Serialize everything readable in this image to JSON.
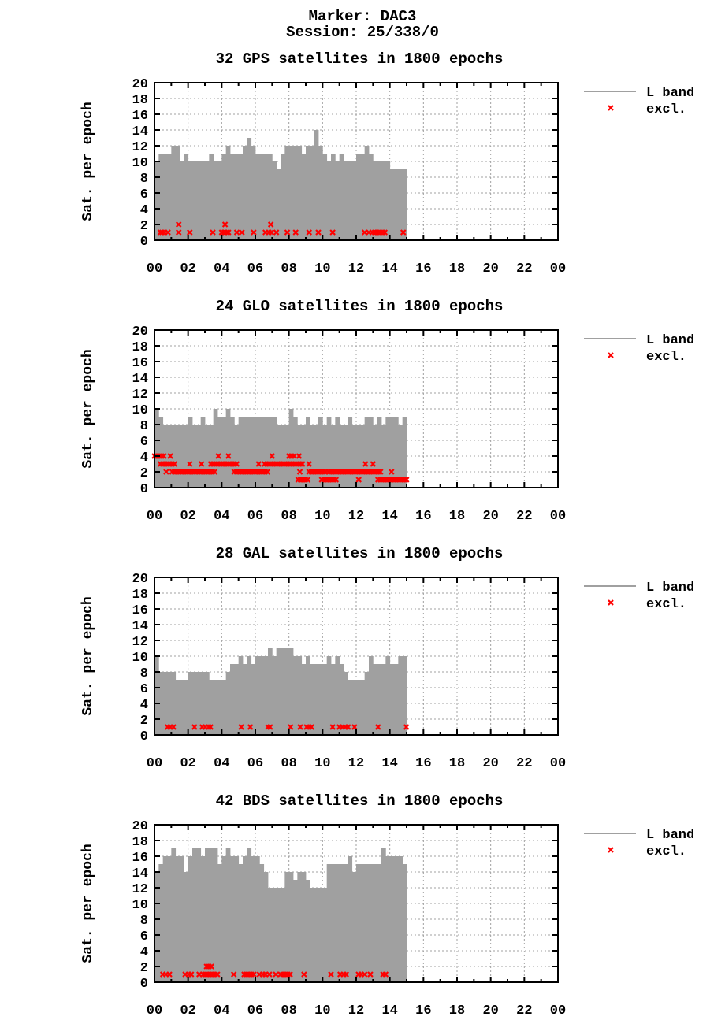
{
  "header": {
    "marker": "Marker: DAC3",
    "session": "Session: 25/338/0"
  },
  "colors": {
    "l_band": "#a0a0a0",
    "excluded": "#ff0000",
    "grid": "#a0a0a0"
  },
  "chart_data": [
    {
      "type": "area",
      "title": "32 GPS satellites in 1800 epochs",
      "ylabel": "Sat. per epoch",
      "xlim": [
        0,
        24
      ],
      "ylim": [
        0,
        20
      ],
      "xticks": [
        "00",
        "02",
        "04",
        "06",
        "08",
        "10",
        "12",
        "14",
        "16",
        "18",
        "20",
        "22",
        "00"
      ],
      "yticks": [
        "0",
        "2",
        "4",
        "6",
        "8",
        "10",
        "12",
        "14",
        "16",
        "18",
        "20"
      ],
      "grid": true,
      "legend": "right",
      "legend_entries": [
        "L band",
        "excl."
      ],
      "x": [
        0,
        0.25,
        0.5,
        0.75,
        1,
        1.25,
        1.5,
        1.75,
        2,
        2.25,
        2.5,
        2.75,
        3,
        3.25,
        3.5,
        3.75,
        4,
        4.25,
        4.5,
        4.75,
        5,
        5.25,
        5.5,
        5.75,
        6,
        6.25,
        6.5,
        6.75,
        7,
        7.25,
        7.5,
        7.75,
        8,
        8.25,
        8.5,
        8.75,
        9,
        9.25,
        9.5,
        9.75,
        10,
        10.25,
        10.5,
        10.75,
        11,
        11.25,
        11.5,
        11.75,
        12,
        12.25,
        12.5,
        12.75,
        13,
        13.25,
        13.5,
        13.75,
        14,
        14.25,
        14.5,
        14.75
      ],
      "values": [
        10,
        11,
        11,
        11,
        12,
        12,
        10,
        11,
        10,
        10,
        10,
        10,
        10,
        11,
        10,
        10,
        11,
        12,
        11,
        11,
        11,
        12,
        13,
        12,
        11,
        11,
        11,
        11,
        10,
        9,
        11,
        12,
        12,
        12,
        12,
        11,
        12,
        12,
        14,
        12,
        11,
        10,
        11,
        10,
        11,
        10,
        10,
        10,
        11,
        11,
        12,
        11,
        10,
        10,
        10,
        10,
        9,
        9,
        9,
        9
      ],
      "excluded_points": [
        [
          0.35,
          1
        ],
        [
          0.45,
          1
        ],
        [
          0.6,
          1
        ],
        [
          0.8,
          1
        ],
        [
          1.44,
          1
        ],
        [
          1.44,
          2
        ],
        [
          2.1,
          1
        ],
        [
          3.47,
          1
        ],
        [
          4.0,
          1
        ],
        [
          4.15,
          1
        ],
        [
          4.2,
          2
        ],
        [
          4.3,
          1
        ],
        [
          4.4,
          1
        ],
        [
          4.9,
          1
        ],
        [
          5.2,
          1
        ],
        [
          5.9,
          1
        ],
        [
          6.6,
          1
        ],
        [
          6.8,
          1
        ],
        [
          6.92,
          2
        ],
        [
          6.95,
          1
        ],
        [
          7.25,
          1
        ],
        [
          7.9,
          1
        ],
        [
          8.4,
          1
        ],
        [
          9.2,
          1
        ],
        [
          9.75,
          1
        ],
        [
          10.6,
          1
        ],
        [
          12.5,
          1
        ],
        [
          12.75,
          1
        ],
        [
          12.95,
          1
        ],
        [
          13.1,
          1
        ],
        [
          13.25,
          1
        ],
        [
          13.4,
          1
        ],
        [
          13.55,
          1
        ],
        [
          13.7,
          1
        ],
        [
          14.8,
          1
        ]
      ],
      "excluded_runs": []
    },
    {
      "type": "area",
      "title": "24 GLO satellites in 1800 epochs",
      "ylabel": "Sat. per epoch",
      "xlim": [
        0,
        24
      ],
      "ylim": [
        0,
        20
      ],
      "xticks": [
        "00",
        "02",
        "04",
        "06",
        "08",
        "10",
        "12",
        "14",
        "16",
        "18",
        "20",
        "22",
        "00"
      ],
      "yticks": [
        "0",
        "2",
        "4",
        "6",
        "8",
        "10",
        "12",
        "14",
        "16",
        "18",
        "20"
      ],
      "grid": true,
      "legend": "right",
      "legend_entries": [
        "L band",
        "excl."
      ],
      "x": [
        0,
        0.25,
        0.5,
        0.75,
        1,
        1.25,
        1.5,
        1.75,
        2,
        2.25,
        2.5,
        2.75,
        3,
        3.25,
        3.5,
        3.75,
        4,
        4.25,
        4.5,
        4.75,
        5,
        5.25,
        5.5,
        5.75,
        6,
        6.25,
        6.5,
        6.75,
        7,
        7.25,
        7.5,
        7.75,
        8,
        8.25,
        8.5,
        8.75,
        9,
        9.25,
        9.5,
        9.75,
        10,
        10.25,
        10.5,
        10.75,
        11,
        11.25,
        11.5,
        11.75,
        12,
        12.25,
        12.5,
        12.75,
        13,
        13.25,
        13.5,
        13.75,
        14,
        14.25,
        14.5,
        14.75
      ],
      "values": [
        10,
        9,
        8,
        8,
        8,
        8,
        8,
        8,
        9,
        8,
        8,
        9,
        8,
        8,
        10,
        9,
        9,
        10,
        9,
        8,
        9,
        9,
        9,
        9,
        9,
        9,
        9,
        9,
        9,
        8,
        8,
        8,
        10,
        9,
        8,
        8,
        9,
        8,
        8,
        9,
        8,
        9,
        8,
        9,
        8,
        8,
        9,
        8,
        8,
        8,
        9,
        9,
        8,
        9,
        8,
        9,
        9,
        9,
        8,
        9
      ],
      "excluded_points": [
        [
          0.94,
          4
        ],
        [
          3.8,
          4
        ],
        [
          4.4,
          4
        ],
        [
          7.0,
          4
        ],
        [
          8.0,
          4
        ],
        [
          8.15,
          4
        ],
        [
          8.3,
          4
        ],
        [
          8.6,
          4
        ],
        [
          2.1,
          3
        ],
        [
          2.8,
          3
        ],
        [
          6.2,
          3
        ],
        [
          9.2,
          3
        ],
        [
          12.55,
          3
        ],
        [
          13.0,
          3
        ],
        [
          0.7,
          2
        ],
        [
          8.65,
          2
        ],
        [
          14.1,
          2
        ],
        [
          12.15,
          1
        ]
      ],
      "excluded_runs": [
        [
          0,
          0.6,
          4
        ],
        [
          0.35,
          1.3,
          3
        ],
        [
          3.35,
          5.0,
          3
        ],
        [
          6.55,
          8.8,
          3
        ],
        [
          1.05,
          3.6,
          2
        ],
        [
          4.75,
          6.75,
          2
        ],
        [
          9.2,
          10.2,
          2
        ],
        [
          10.35,
          13.55,
          2
        ],
        [
          8.55,
          9.25,
          1
        ],
        [
          9.95,
          10.85,
          1
        ],
        [
          13.3,
          15.05,
          1
        ]
      ]
    },
    {
      "type": "area",
      "title": "28 GAL satellites in 1800 epochs",
      "ylabel": "Sat. per epoch",
      "xlim": [
        0,
        24
      ],
      "ylim": [
        0,
        20
      ],
      "xticks": [
        "00",
        "02",
        "04",
        "06",
        "08",
        "10",
        "12",
        "14",
        "16",
        "18",
        "20",
        "22",
        "00"
      ],
      "yticks": [
        "0",
        "2",
        "4",
        "6",
        "8",
        "10",
        "12",
        "14",
        "16",
        "18",
        "20"
      ],
      "grid": true,
      "legend": "right",
      "legend_entries": [
        "L band",
        "excl."
      ],
      "x": [
        0,
        0.25,
        0.5,
        0.75,
        1,
        1.25,
        1.5,
        1.75,
        2,
        2.25,
        2.5,
        2.75,
        3,
        3.25,
        3.5,
        3.75,
        4,
        4.25,
        4.5,
        4.75,
        5,
        5.25,
        5.5,
        5.75,
        6,
        6.25,
        6.5,
        6.75,
        7,
        7.25,
        7.5,
        7.75,
        8,
        8.25,
        8.5,
        8.75,
        9,
        9.25,
        9.5,
        9.75,
        10,
        10.25,
        10.5,
        10.75,
        11,
        11.25,
        11.5,
        11.75,
        12,
        12.25,
        12.5,
        12.75,
        13,
        13.25,
        13.5,
        13.75,
        14,
        14.25,
        14.5,
        14.75
      ],
      "values": [
        10,
        8,
        8,
        8,
        8,
        7,
        7,
        7,
        8,
        8,
        8,
        8,
        8,
        7,
        7,
        7,
        7,
        8,
        9,
        9,
        10,
        9,
        10,
        9,
        10,
        10,
        10,
        11,
        10,
        11,
        11,
        11,
        11,
        10,
        10,
        9,
        10,
        9,
        9,
        9,
        9,
        10,
        9,
        10,
        9,
        8,
        7,
        7,
        7,
        7,
        8,
        10,
        9,
        9,
        9,
        10,
        9,
        9,
        10,
        10
      ],
      "excluded_points": [
        [
          0.78,
          1
        ],
        [
          0.94,
          1
        ],
        [
          1.13,
          1
        ],
        [
          2.38,
          1
        ],
        [
          2.84,
          1
        ],
        [
          3.03,
          1
        ],
        [
          3.23,
          1
        ],
        [
          3.34,
          1
        ],
        [
          5.16,
          1
        ],
        [
          5.7,
          1
        ],
        [
          6.75,
          1
        ],
        [
          6.88,
          1
        ],
        [
          8.1,
          1
        ],
        [
          8.67,
          1
        ],
        [
          9.05,
          1
        ],
        [
          9.19,
          1
        ],
        [
          9.34,
          1
        ],
        [
          10.6,
          1
        ],
        [
          11.0,
          1
        ],
        [
          11.17,
          1
        ],
        [
          11.36,
          1
        ],
        [
          11.52,
          1
        ],
        [
          11.9,
          1
        ],
        [
          13.3,
          1
        ],
        [
          14.98,
          1
        ]
      ],
      "excluded_runs": []
    },
    {
      "type": "area",
      "title": "42 BDS satellites in 1800 epochs",
      "ylabel": "Sat. per epoch",
      "xlim": [
        0,
        24
      ],
      "ylim": [
        0,
        20
      ],
      "xticks": [
        "00",
        "02",
        "04",
        "06",
        "08",
        "10",
        "12",
        "14",
        "16",
        "18",
        "20",
        "22",
        "00"
      ],
      "yticks": [
        "0",
        "2",
        "4",
        "6",
        "8",
        "10",
        "12",
        "14",
        "16",
        "18",
        "20"
      ],
      "grid": true,
      "legend": "right",
      "legend_entries": [
        "L band",
        "excl."
      ],
      "x": [
        0,
        0.25,
        0.5,
        0.75,
        1,
        1.25,
        1.5,
        1.75,
        2,
        2.25,
        2.5,
        2.75,
        3,
        3.25,
        3.5,
        3.75,
        4,
        4.25,
        4.5,
        4.75,
        5,
        5.25,
        5.5,
        5.75,
        6,
        6.25,
        6.5,
        6.75,
        7,
        7.25,
        7.5,
        7.75,
        8,
        8.25,
        8.5,
        8.75,
        9,
        9.25,
        9.5,
        9.75,
        10,
        10.25,
        10.5,
        10.75,
        11,
        11.25,
        11.5,
        11.75,
        12,
        12.25,
        12.5,
        12.75,
        13,
        13.25,
        13.5,
        13.75,
        14,
        14.25,
        14.5,
        14.75
      ],
      "values": [
        14,
        15,
        16,
        16,
        17,
        16,
        16,
        14,
        16,
        17,
        17,
        16,
        17,
        17,
        17,
        15,
        16,
        17,
        16,
        16,
        15,
        16,
        17,
        16,
        16,
        15,
        14,
        12,
        12,
        12,
        12,
        14,
        14,
        13,
        14,
        14,
        13,
        12,
        12,
        12,
        12,
        15,
        15,
        15,
        15,
        15,
        16,
        14,
        15,
        15,
        15,
        15,
        15,
        15,
        17,
        16,
        16,
        16,
        16,
        15
      ],
      "excluded_points": [
        [
          0.5,
          1
        ],
        [
          0.69,
          1
        ],
        [
          0.89,
          1
        ],
        [
          1.83,
          1
        ],
        [
          2.03,
          1
        ],
        [
          2.19,
          1
        ],
        [
          2.66,
          1
        ],
        [
          4.72,
          1
        ],
        [
          6.25,
          1
        ],
        [
          6.44,
          1
        ],
        [
          6.6,
          1
        ],
        [
          6.84,
          1
        ],
        [
          7.22,
          1
        ],
        [
          8.9,
          1
        ],
        [
          10.5,
          1
        ],
        [
          11.05,
          1
        ],
        [
          11.25,
          1
        ],
        [
          11.4,
          1
        ],
        [
          12.14,
          1
        ],
        [
          12.3,
          1
        ],
        [
          12.5,
          1
        ],
        [
          12.84,
          1
        ],
        [
          13.6,
          1
        ],
        [
          13.75,
          1
        ]
      ],
      "excluded_runs": [
        [
          2.9,
          3.86,
          1
        ],
        [
          5.34,
          5.97,
          1
        ],
        [
          7.5,
          8.15,
          1
        ],
        [
          3.1,
          3.45,
          2
        ]
      ]
    }
  ]
}
